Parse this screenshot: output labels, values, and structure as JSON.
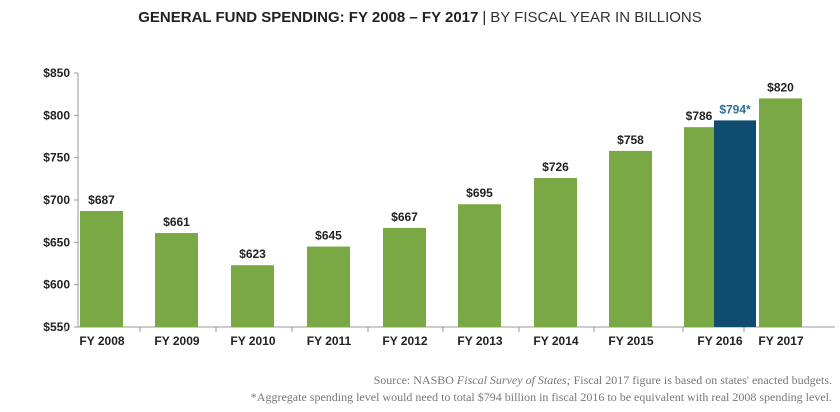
{
  "title": {
    "main": "GENERAL FUND SPENDING: FY 2008 – FY 2017",
    "separator": "|",
    "subtitle": "BY FISCAL YEAR IN BILLIONS"
  },
  "colors": {
    "bar": "#7aa844",
    "highlight_bar": "#0f4c6f",
    "highlight_label": "#2c6e99",
    "axis": "#999999",
    "text": "#222222"
  },
  "chart_data": {
    "type": "bar",
    "title": "GENERAL FUND SPENDING: FY 2008 – FY 2017 | BY FISCAL YEAR IN BILLIONS",
    "xlabel": "",
    "ylabel": "",
    "ylim": [
      550,
      850
    ],
    "yticks": [
      550,
      600,
      650,
      700,
      750,
      800,
      850
    ],
    "ytick_labels": [
      "$550",
      "$600",
      "$650",
      "$700",
      "$750",
      "$800",
      "$850"
    ],
    "grid": false,
    "bars": [
      {
        "category": "FY 2008",
        "value": 687,
        "label": "$687",
        "highlight": false
      },
      {
        "category": "FY 2009",
        "value": 661,
        "label": "$661",
        "highlight": false
      },
      {
        "category": "FY 2010",
        "value": 623,
        "label": "$623",
        "highlight": false
      },
      {
        "category": "FY 2011",
        "value": 645,
        "label": "$645",
        "highlight": false
      },
      {
        "category": "FY 2012",
        "value": 667,
        "label": "$667",
        "highlight": false
      },
      {
        "category": "FY 2013",
        "value": 695,
        "label": "$695",
        "highlight": false
      },
      {
        "category": "FY 2014",
        "value": 726,
        "label": "$726",
        "highlight": false
      },
      {
        "category": "FY 2015",
        "value": 758,
        "label": "$758",
        "highlight": false
      },
      {
        "category": "FY 2016",
        "value": 786,
        "label": "$786",
        "highlight": false
      },
      {
        "category": "FY 2016",
        "value": 794,
        "label": "$794*",
        "highlight": true
      },
      {
        "category": "FY 2017",
        "value": 820,
        "label": "$820",
        "highlight": false
      }
    ]
  },
  "footnotes": {
    "source_prefix": "Source: NASBO ",
    "source_italic": "Fiscal Survey of States;",
    "source_suffix": " Fiscal 2017 figure is based on states' enacted budgets.",
    "asterisk_note": "*Aggregate spending level would need to total $794 billion in fiscal 2016 to be equivalent with real 2008 spending level."
  }
}
